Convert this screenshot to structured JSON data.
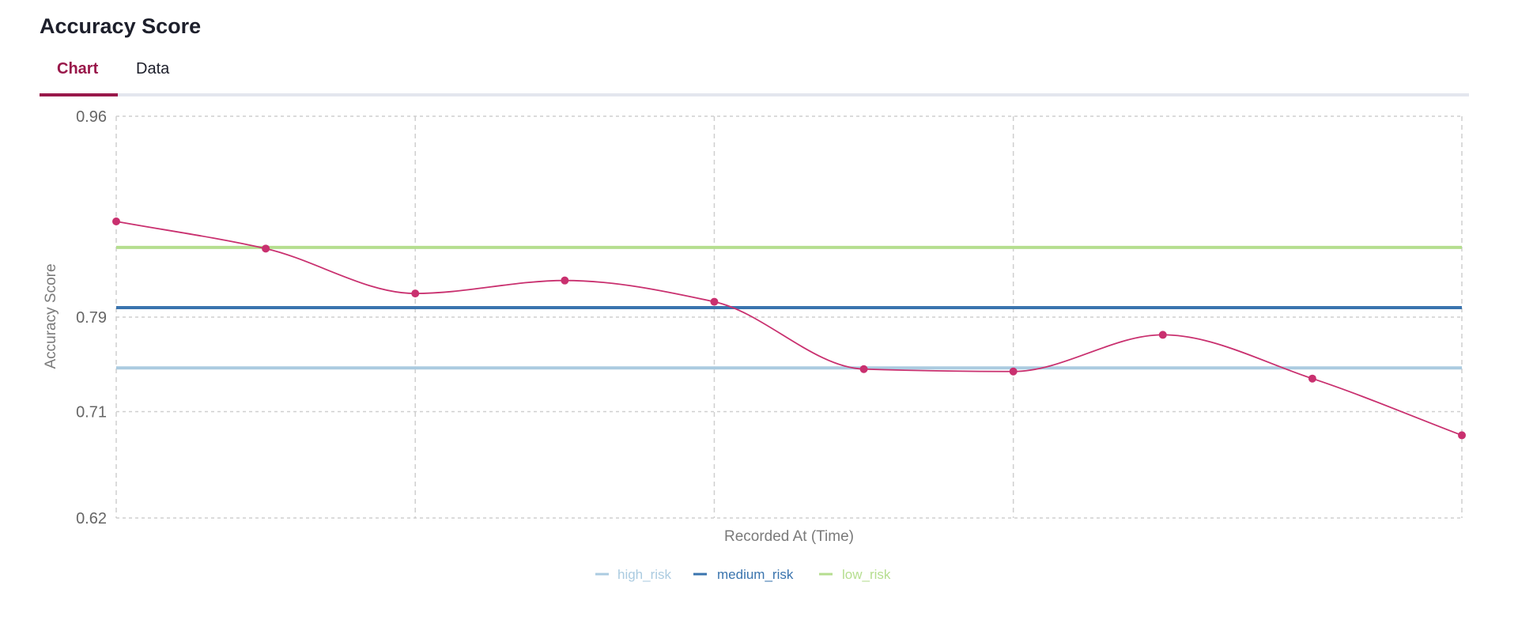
{
  "header": {
    "title": "Accuracy Score"
  },
  "tabs": [
    {
      "label": "Chart",
      "active": true
    },
    {
      "label": "Data",
      "active": false
    }
  ],
  "colors": {
    "accent": "#99184a",
    "series": "#c9306f",
    "high_risk": "#abcbe0",
    "medium_risk": "#3a74ae",
    "low_risk": "#b5de8f"
  },
  "chart_data": {
    "type": "line",
    "title": "",
    "xlabel": "Recorded At (Time)",
    "ylabel": "Accuracy Score",
    "ylim": [
      0.62,
      0.96
    ],
    "yticks": [
      "0.96",
      "0.79",
      "0.71",
      "0.62"
    ],
    "grid": true,
    "legend_position": "bottom",
    "series": [
      {
        "values": [
          0.871,
          0.848,
          0.81,
          0.821,
          0.803,
          0.746,
          0.744,
          0.775,
          0.738,
          0.69
        ]
      }
    ],
    "thresholds": [
      {
        "name": "high_risk",
        "value": 0.747
      },
      {
        "name": "medium_risk",
        "value": 0.798
      },
      {
        "name": "low_risk",
        "value": 0.849
      }
    ]
  }
}
